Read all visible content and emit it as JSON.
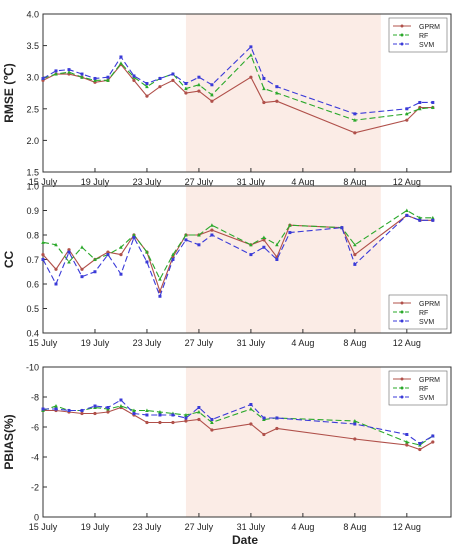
{
  "figure": {
    "xlabel": "Date",
    "x_tick_labels": [
      "15 July",
      "19 July",
      "23 July",
      "27 July",
      "31 July",
      "4 Aug",
      "8 Aug",
      "12 Aug"
    ],
    "shaded_period": [
      "26 July",
      "10 Aug"
    ],
    "shade_color": "#fbece6",
    "series_colors": {
      "GPRM": "#b0504a",
      "RF": "#2aa82a",
      "SVM": "#3a3ad8"
    }
  },
  "chart_data": [
    {
      "type": "line",
      "ylabel": "RMSE (℃)",
      "ylim": [
        1.5,
        4.0
      ],
      "yticks": [
        "1.5",
        "2.0",
        "2.5",
        "3.0",
        "3.5",
        "4.0"
      ],
      "legend_position": "top-right",
      "x": [
        "15 July",
        "16 July",
        "17 July",
        "18 July",
        "19 July",
        "20 July",
        "21 July",
        "22 July",
        "23 July",
        "24 July",
        "25 July",
        "26 July",
        "27 July",
        "28 July",
        "31 July",
        "1 Aug",
        "2 Aug",
        "8 Aug",
        "12 Aug",
        "13 Aug",
        "14 Aug"
      ],
      "series": [
        {
          "name": "GPRM",
          "values": [
            2.95,
            3.05,
            3.05,
            3.0,
            2.92,
            2.95,
            3.2,
            2.95,
            2.7,
            2.85,
            2.95,
            2.75,
            2.78,
            2.62,
            3.0,
            2.6,
            2.62,
            2.12,
            2.32,
            2.52,
            2.52
          ]
        },
        {
          "name": "RF",
          "values": [
            2.98,
            3.05,
            3.08,
            3.0,
            2.95,
            2.95,
            3.22,
            3.0,
            2.85,
            2.98,
            3.05,
            2.82,
            2.88,
            2.72,
            3.35,
            2.82,
            2.75,
            2.32,
            2.42,
            2.5,
            2.52
          ]
        },
        {
          "name": "SVM",
          "values": [
            2.98,
            3.1,
            3.12,
            3.05,
            2.98,
            3.0,
            3.32,
            3.02,
            2.9,
            2.98,
            3.05,
            2.9,
            3.0,
            2.88,
            3.48,
            2.98,
            2.85,
            2.42,
            2.5,
            2.6,
            2.6
          ]
        }
      ]
    },
    {
      "type": "line",
      "ylabel": "CC",
      "ylim": [
        0.4,
        1.0
      ],
      "yticks": [
        "0.4",
        "0.5",
        "0.6",
        "0.7",
        "0.8",
        "0.9",
        "1.0"
      ],
      "legend_position": "bottom-right",
      "x": [
        "15 July",
        "16 July",
        "17 July",
        "18 July",
        "19 July",
        "20 July",
        "21 July",
        "22 July",
        "23 July",
        "24 July",
        "25 July",
        "26 July",
        "27 July",
        "28 July",
        "31 July",
        "1 Aug",
        "2 Aug",
        "3 Aug",
        "7 Aug",
        "8 Aug",
        "12 Aug",
        "13 Aug",
        "14 Aug"
      ],
      "series": [
        {
          "name": "GPRM",
          "values": [
            0.72,
            0.66,
            0.74,
            0.66,
            0.7,
            0.73,
            0.72,
            0.8,
            0.73,
            0.57,
            0.71,
            0.8,
            0.8,
            0.82,
            0.76,
            0.78,
            0.71,
            0.84,
            0.83,
            0.72,
            0.88,
            0.86,
            0.86
          ]
        },
        {
          "name": "RF",
          "values": [
            0.77,
            0.76,
            0.69,
            0.75,
            0.7,
            0.72,
            0.75,
            0.8,
            0.73,
            0.62,
            0.72,
            0.8,
            0.8,
            0.84,
            0.76,
            0.79,
            0.76,
            0.84,
            0.83,
            0.76,
            0.9,
            0.87,
            0.87
          ]
        },
        {
          "name": "SVM",
          "values": [
            0.7,
            0.6,
            0.73,
            0.63,
            0.65,
            0.72,
            0.64,
            0.79,
            0.69,
            0.55,
            0.7,
            0.78,
            0.76,
            0.8,
            0.72,
            0.75,
            0.7,
            0.81,
            0.83,
            0.68,
            0.88,
            0.86,
            0.86
          ]
        }
      ]
    },
    {
      "type": "line",
      "ylabel": "PBIAS(%)",
      "ylim": [
        0,
        -10
      ],
      "yticks": [
        "-10",
        "-8",
        "-6",
        "-4",
        "-2",
        "0"
      ],
      "legend_position": "top-right",
      "x": [
        "15 July",
        "16 July",
        "17 July",
        "18 July",
        "19 July",
        "20 July",
        "21 July",
        "22 July",
        "23 July",
        "24 July",
        "25 July",
        "26 July",
        "27 July",
        "28 July",
        "31 July",
        "1 Aug",
        "2 Aug",
        "8 Aug",
        "12 Aug",
        "13 Aug",
        "14 Aug"
      ],
      "series": [
        {
          "name": "GPRM",
          "values": [
            -7.1,
            -7.1,
            -7.0,
            -6.9,
            -6.9,
            -7.0,
            -7.3,
            -6.8,
            -6.3,
            -6.3,
            -6.3,
            -6.4,
            -6.5,
            -5.8,
            -6.2,
            -5.5,
            -5.9,
            -5.2,
            -4.8,
            -4.5,
            -5.0
          ]
        },
        {
          "name": "RF",
          "values": [
            -7.1,
            -7.4,
            -7.1,
            -7.1,
            -7.3,
            -7.2,
            -7.4,
            -7.1,
            -7.1,
            -7.0,
            -6.9,
            -6.8,
            -7.0,
            -6.3,
            -7.2,
            -6.5,
            -6.6,
            -6.4,
            -5.0,
            -4.8,
            -5.4
          ]
        },
        {
          "name": "SVM",
          "values": [
            -7.2,
            -7.2,
            -7.1,
            -7.1,
            -7.4,
            -7.3,
            -7.8,
            -6.9,
            -6.8,
            -6.8,
            -6.8,
            -6.6,
            -7.3,
            -6.5,
            -7.5,
            -6.6,
            -6.6,
            -6.2,
            -5.5,
            -4.9,
            -5.4
          ]
        }
      ]
    }
  ]
}
